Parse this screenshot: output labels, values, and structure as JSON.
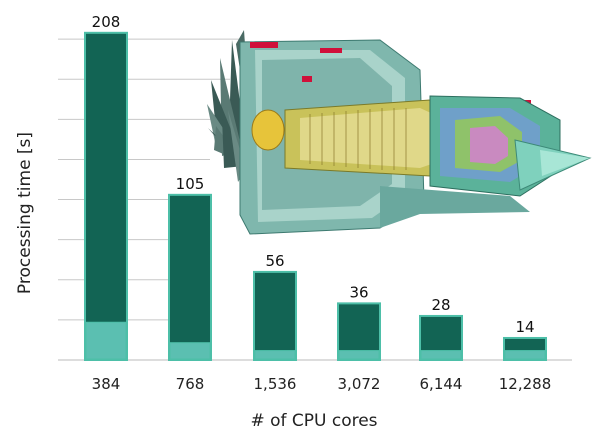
{
  "chart_data": {
    "type": "bar",
    "xlabel": "# of CPU cores",
    "ylabel": "Processing time [s]",
    "categories": [
      "384",
      "768",
      "1,536",
      "3,072",
      "6,144",
      "12,288"
    ],
    "values": [
      208,
      105,
      56,
      36,
      28,
      14
    ],
    "value_labels": [
      "208",
      "105",
      "56",
      "36",
      "28",
      "14"
    ],
    "secondary_values": [
      24,
      11,
      6,
      6,
      6,
      6
    ],
    "ylim": [
      0,
      215
    ],
    "grid": true,
    "colors": {
      "bar": "#126454",
      "bar_edge": "#4dbfa8",
      "bar_lower": "#5bbfb1",
      "grid": "#c8c8c8",
      "axis": "#bbbbbb"
    }
  },
  "illustration": {
    "icon": "jet-engine-cutaway-icon"
  }
}
